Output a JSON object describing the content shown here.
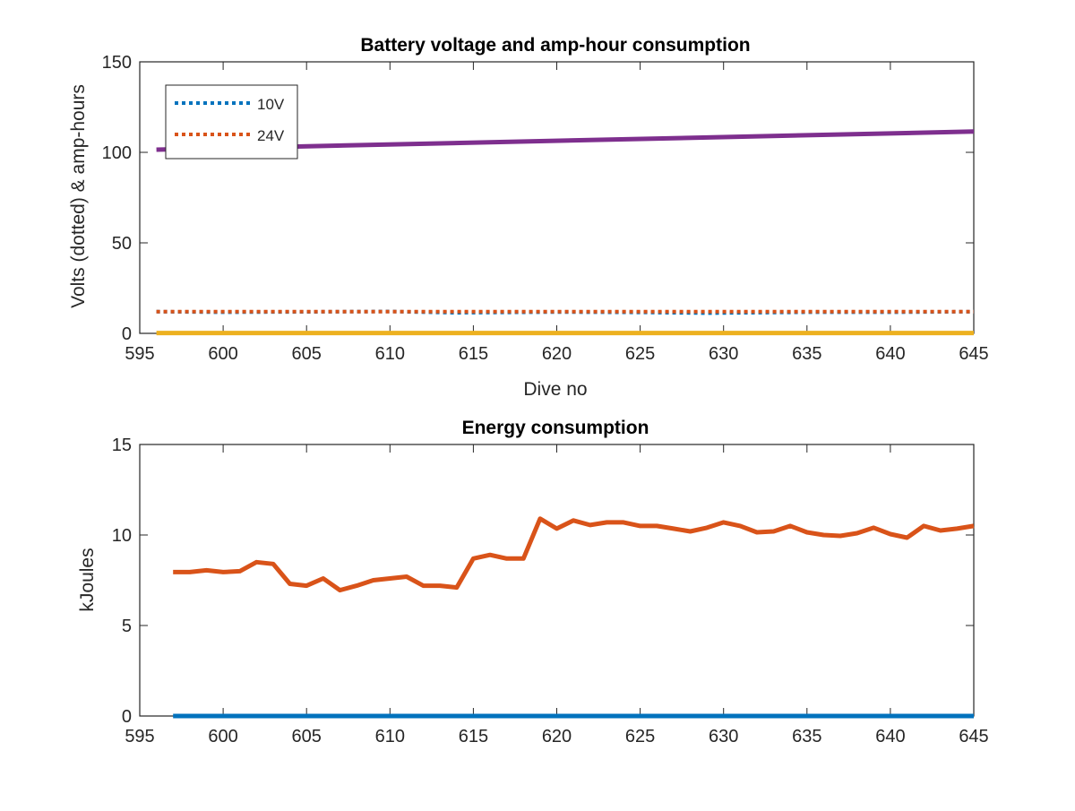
{
  "chart_data": [
    {
      "type": "line",
      "title": "Battery voltage and amp-hour consumption",
      "xlabel": "Dive no",
      "ylabel": "Volts (dotted) & amp-hours",
      "xlim": [
        595,
        645
      ],
      "ylim": [
        0,
        150
      ],
      "xticks": [
        "595",
        "600",
        "605",
        "610",
        "615",
        "620",
        "625",
        "630",
        "635",
        "640",
        "645"
      ],
      "yticks": [
        "0",
        "50",
        "100",
        "150"
      ],
      "grid": false,
      "legend_position": "top-left",
      "series": [
        {
          "name": "10V",
          "style": "dotted",
          "color": "#0072BD",
          "x": [
            596,
            600,
            605,
            610,
            614,
            620,
            625,
            629,
            635,
            640,
            645
          ],
          "values": [
            12,
            11.7,
            11.9,
            12.1,
            11.4,
            11.8,
            11.6,
            11.2,
            11.7,
            11.7,
            12
          ]
        },
        {
          "name": "24V",
          "style": "dotted",
          "color": "#D95319",
          "x": [
            596,
            600,
            605,
            610,
            615,
            620,
            625,
            630,
            635,
            640,
            645
          ],
          "values": [
            12,
            12,
            12,
            12,
            12,
            12,
            12,
            12,
            12,
            12,
            12
          ]
        },
        {
          "style": "solid",
          "color": "#EDB120",
          "x": [
            596,
            645
          ],
          "values": [
            0.2,
            0.2
          ]
        },
        {
          "style": "solid",
          "color": "#7E2F8E",
          "x": [
            596,
            645
          ],
          "values": [
            101.5,
            111.5
          ]
        }
      ]
    },
    {
      "type": "line",
      "title": "Energy consumption",
      "xlabel": "",
      "ylabel": "kJoules",
      "xlim": [
        595,
        645
      ],
      "ylim": [
        0,
        15
      ],
      "xticks": [
        "595",
        "600",
        "605",
        "610",
        "615",
        "620",
        "625",
        "630",
        "635",
        "640",
        "645"
      ],
      "yticks": [
        "0",
        "5",
        "10",
        "15"
      ],
      "grid": false,
      "series": [
        {
          "style": "solid",
          "color": "#0072BD",
          "x": [
            597,
            645
          ],
          "values": [
            0,
            0
          ]
        },
        {
          "style": "solid",
          "color": "#D95319",
          "x": [
            597,
            598,
            599,
            600,
            601,
            602,
            603,
            604,
            605,
            606,
            607,
            608,
            609,
            610,
            611,
            612,
            613,
            614,
            615,
            616,
            617,
            618,
            619,
            620,
            621,
            622,
            623,
            624,
            625,
            626,
            627,
            628,
            629,
            630,
            631,
            632,
            633,
            634,
            635,
            636,
            637,
            638,
            639,
            640,
            641,
            642,
            643,
            644,
            645
          ],
          "values": [
            7.95,
            7.95,
            8.05,
            7.95,
            8.0,
            8.5,
            8.4,
            7.3,
            7.2,
            7.6,
            6.95,
            7.2,
            7.5,
            7.6,
            7.7,
            7.2,
            7.2,
            7.1,
            8.7,
            8.9,
            8.7,
            8.7,
            10.9,
            10.35,
            10.8,
            10.55,
            10.7,
            10.7,
            10.5,
            10.5,
            10.35,
            10.2,
            10.4,
            10.7,
            10.5,
            10.15,
            10.2,
            10.5,
            10.15,
            10.0,
            9.95,
            10.1,
            10.4,
            10.05,
            9.85,
            10.5,
            10.25,
            10.35,
            10.5
          ]
        }
      ]
    }
  ]
}
